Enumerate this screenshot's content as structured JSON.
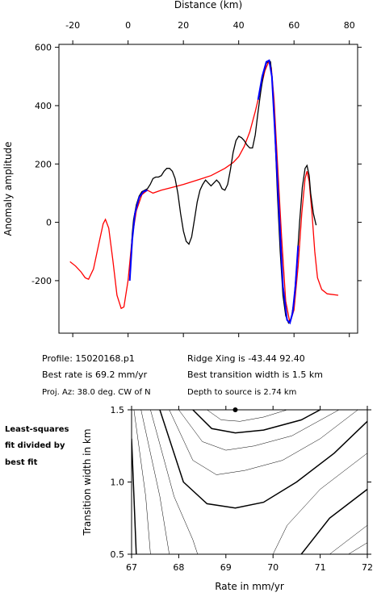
{
  "chart_data": [
    {
      "type": "line",
      "xlabel": "Distance (km)",
      "ylabel": "Anomaly amplitude",
      "xlim": [
        -25,
        83
      ],
      "ylim": [
        -380,
        610
      ],
      "xticks": [
        -20,
        0,
        20,
        40,
        60,
        80
      ],
      "yticks": [
        -200,
        0,
        200,
        400,
        600
      ],
      "series": [
        {
          "color": "#ff0000",
          "x": [
            -21,
            -19,
            -17,
            -15.5,
            -14.3,
            -12.5,
            -10.5,
            -9,
            -8.2,
            -7,
            -5.5,
            -4,
            -2.5,
            -1.5,
            0,
            1.5,
            3,
            5,
            7,
            9,
            12,
            16,
            20,
            25,
            30,
            35,
            38,
            40,
            42,
            44,
            46,
            48,
            49.5,
            50.8,
            51.8,
            52.8,
            54,
            55.5,
            57,
            58.5,
            60,
            61.5,
            62.8,
            64,
            64.7,
            65.5,
            66.5,
            67.5,
            68.5,
            70,
            72,
            76
          ],
          "values": [
            -135,
            -150,
            -170,
            -190,
            -195,
            -160,
            -70,
            -5,
            10,
            -20,
            -130,
            -250,
            -295,
            -290,
            -200,
            -50,
            40,
            95,
            110,
            100,
            110,
            120,
            130,
            145,
            160,
            185,
            205,
            225,
            260,
            310,
            380,
            460,
            520,
            550,
            530,
            420,
            210,
            -50,
            -270,
            -345,
            -300,
            -150,
            30,
            150,
            175,
            140,
            30,
            -100,
            -190,
            -230,
            -245,
            -250
          ]
        },
        {
          "color": "#000000",
          "x": [
            0.6,
            1,
            1.5,
            2,
            3,
            4,
            5,
            6,
            7,
            8,
            9,
            10,
            11,
            12,
            13,
            14,
            15,
            16,
            17,
            18,
            19,
            20,
            21,
            22,
            23,
            24,
            25,
            26,
            27,
            28,
            29,
            30,
            31,
            32,
            33,
            34,
            35,
            36,
            37,
            38,
            39,
            40,
            41,
            42,
            43,
            44,
            45,
            46,
            47,
            48,
            49,
            50,
            51,
            51.5,
            52,
            53,
            54,
            55,
            56,
            57,
            58,
            59,
            60,
            61,
            62,
            63,
            64,
            64.7,
            65.5,
            66,
            67,
            68
          ],
          "values": [
            -200,
            -120,
            -40,
            10,
            60,
            90,
            105,
            110,
            115,
            130,
            150,
            155,
            155,
            160,
            175,
            185,
            185,
            175,
            150,
            100,
            30,
            -30,
            -65,
            -75,
            -50,
            10,
            70,
            110,
            130,
            145,
            135,
            125,
            135,
            145,
            135,
            115,
            110,
            130,
            180,
            240,
            280,
            295,
            290,
            280,
            265,
            255,
            255,
            300,
            380,
            450,
            510,
            545,
            555,
            550,
            500,
            330,
            100,
            -100,
            -250,
            -320,
            -345,
            -330,
            -270,
            -150,
            0,
            120,
            185,
            195,
            160,
            100,
            30,
            -10
          ]
        },
        {
          "color": "#0000ff",
          "x": [
            0.6,
            1.5,
            2.5,
            4,
            5.5,
            7,
            8,
            47,
            48.5,
            50,
            51,
            52,
            53,
            54.5,
            56,
            57.5,
            58.5,
            59.5,
            60.5,
            61.5
          ],
          "values": [
            -200,
            -60,
            30,
            85,
            105,
            110,
            null,
            420,
            500,
            550,
            555,
            500,
            330,
            50,
            -220,
            -335,
            -345,
            -310,
            -220,
            -80
          ]
        }
      ]
    },
    {
      "type": "contour",
      "xlabel": "Rate in mm/yr",
      "ylabel": "Transition width in km",
      "xlim": [
        67,
        72
      ],
      "ylim": [
        0.5,
        1.5
      ],
      "xticks": [
        67,
        68,
        69,
        70,
        71,
        72
      ],
      "yticks": [
        {
          "value": 0.5,
          "label": "0.5"
        },
        {
          "value": 1.0,
          "label": "1.0"
        },
        {
          "value": 1.5,
          "label": "1.5"
        }
      ],
      "best_fit": {
        "x": 69.2,
        "y": 1.5
      },
      "contours": [
        {
          "bold": false,
          "x": [
            68.6,
            68.9,
            69.3,
            69.8,
            70.3
          ],
          "y": [
            1.5,
            1.43,
            1.42,
            1.45,
            1.5
          ]
        },
        {
          "bold": true,
          "x": [
            68.3,
            68.7,
            69.2,
            69.8,
            70.6,
            71.0
          ],
          "y": [
            1.5,
            1.37,
            1.34,
            1.36,
            1.43,
            1.5
          ]
        },
        {
          "bold": false,
          "x": [
            68.0,
            68.5,
            69.0,
            69.6,
            70.4,
            71.4
          ],
          "y": [
            1.5,
            1.28,
            1.22,
            1.25,
            1.32,
            1.5
          ]
        },
        {
          "bold": false,
          "x": [
            67.8,
            68.3,
            68.8,
            69.4,
            70.2,
            71.0,
            71.8
          ],
          "y": [
            1.5,
            1.15,
            1.05,
            1.08,
            1.15,
            1.3,
            1.5
          ]
        },
        {
          "bold": true,
          "x": [
            67.6,
            68.1,
            68.6,
            69.2,
            69.8,
            70.5,
            71.3,
            72
          ],
          "y": [
            1.5,
            1.0,
            0.85,
            0.82,
            0.86,
            1.0,
            1.2,
            1.42
          ]
        },
        {
          "bold": false,
          "x": [
            67.4,
            67.9,
            68.3,
            68.4
          ],
          "y": [
            1.5,
            0.9,
            0.6,
            0.5
          ]
        },
        {
          "bold": false,
          "x": [
            70.0,
            70.3,
            71.0,
            72
          ],
          "y": [
            0.5,
            0.7,
            0.95,
            1.2
          ]
        },
        {
          "bold": false,
          "x": [
            67.2,
            67.6,
            67.8
          ],
          "y": [
            1.5,
            0.9,
            0.5
          ]
        },
        {
          "bold": true,
          "x": [
            70.6,
            71.2,
            72
          ],
          "y": [
            0.5,
            0.75,
            0.95
          ]
        },
        {
          "bold": false,
          "x": [
            67.05,
            67.3,
            67.4
          ],
          "y": [
            1.5,
            0.9,
            0.5
          ]
        },
        {
          "bold": false,
          "x": [
            71.2,
            72
          ],
          "y": [
            0.5,
            0.7
          ]
        },
        {
          "bold": true,
          "x": [
            67.0,
            67.1
          ],
          "y": [
            1.3,
            0.5
          ]
        },
        {
          "bold": false,
          "x": [
            71.6,
            72
          ],
          "y": [
            0.5,
            0.58
          ]
        }
      ]
    }
  ],
  "profile_info": {
    "profile": "Profile: 15020168.p1",
    "ridge": "Ridge Xing is -43.44 92.40",
    "rate": "Best rate is 69.2 mm/yr",
    "width": "Best transition width is 1.5 km",
    "azimuth": "Proj. Az: 38.0 deg. CW of N",
    "depth": "Depth to source is  2.74 km"
  },
  "side_label": [
    "Least-squares",
    "fit divided by",
    "best fit"
  ]
}
